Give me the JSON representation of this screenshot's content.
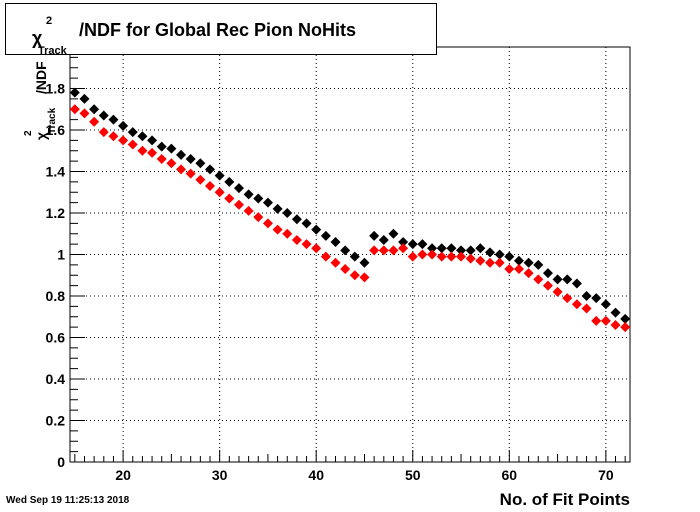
{
  "chart_data": {
    "type": "scatter",
    "title": {
      "symbol": "χ",
      "superscript": "2",
      "subscript": "Track",
      "rest": "/NDF for Global Rec Pion NoHits"
    },
    "xlabel": "No. of Fit Points",
    "ylabel": {
      "symbol": "χ",
      "superscript": "2",
      "subscript": "Track",
      "rest": "/NDF"
    },
    "xlim": [
      14.5,
      72.5
    ],
    "ylim": [
      0,
      2.0
    ],
    "xticks": [
      20,
      30,
      40,
      50,
      60,
      70
    ],
    "yticks": [
      0,
      0.2,
      0.4,
      0.6,
      0.8,
      1,
      1.2,
      1.4,
      1.6,
      1.8
    ],
    "ytick_labels": [
      "0",
      "0.2",
      "0.4",
      "0.6",
      "0.8",
      "1",
      "1.2",
      "1.4",
      "1.6",
      "1.8"
    ],
    "grid": true,
    "series": [
      {
        "color": "#000000",
        "x": [
          15,
          16,
          17,
          18,
          19,
          20,
          21,
          22,
          23,
          24,
          25,
          26,
          27,
          28,
          29,
          30,
          31,
          32,
          33,
          34,
          35,
          36,
          37,
          38,
          39,
          40,
          41,
          42,
          43,
          44,
          45,
          46,
          47,
          48,
          49,
          50,
          51,
          52,
          53,
          54,
          55,
          56,
          57,
          58,
          59,
          60,
          61,
          62,
          63,
          64,
          65,
          66,
          67,
          68,
          69,
          70,
          71,
          72
        ],
        "values": [
          1.78,
          1.75,
          1.7,
          1.67,
          1.65,
          1.62,
          1.59,
          1.57,
          1.55,
          1.52,
          1.51,
          1.48,
          1.46,
          1.44,
          1.41,
          1.38,
          1.35,
          1.32,
          1.29,
          1.27,
          1.25,
          1.22,
          1.2,
          1.17,
          1.15,
          1.12,
          1.09,
          1.06,
          1.02,
          0.99,
          0.96,
          1.09,
          1.07,
          1.1,
          1.06,
          1.05,
          1.05,
          1.03,
          1.03,
          1.03,
          1.02,
          1.02,
          1.03,
          1.01,
          1.0,
          0.99,
          0.97,
          0.96,
          0.95,
          0.91,
          0.88,
          0.88,
          0.86,
          0.8,
          0.79,
          0.76,
          0.72,
          0.69
        ]
      },
      {
        "color": "#ff0000",
        "x": [
          15,
          16,
          17,
          18,
          19,
          20,
          21,
          22,
          23,
          24,
          25,
          26,
          27,
          28,
          29,
          30,
          31,
          32,
          33,
          34,
          35,
          36,
          37,
          38,
          39,
          40,
          41,
          42,
          43,
          44,
          45,
          46,
          47,
          48,
          49,
          50,
          51,
          52,
          53,
          54,
          55,
          56,
          57,
          58,
          59,
          60,
          61,
          62,
          63,
          64,
          65,
          66,
          67,
          68,
          69,
          70,
          71,
          72
        ],
        "values": [
          1.7,
          1.68,
          1.64,
          1.59,
          1.57,
          1.55,
          1.53,
          1.5,
          1.49,
          1.46,
          1.44,
          1.41,
          1.39,
          1.36,
          1.33,
          1.3,
          1.27,
          1.24,
          1.21,
          1.18,
          1.15,
          1.12,
          1.1,
          1.07,
          1.05,
          1.03,
          0.99,
          0.96,
          0.93,
          0.9,
          0.89,
          1.02,
          1.02,
          1.02,
          1.03,
          0.99,
          1.0,
          1.0,
          0.99,
          0.99,
          0.99,
          0.98,
          0.97,
          0.96,
          0.96,
          0.93,
          0.93,
          0.91,
          0.88,
          0.85,
          0.82,
          0.79,
          0.76,
          0.74,
          0.68,
          0.68,
          0.66,
          0.65
        ]
      }
    ]
  },
  "footer": {
    "timestamp": "Wed Sep 19 11:25:13 2018"
  }
}
